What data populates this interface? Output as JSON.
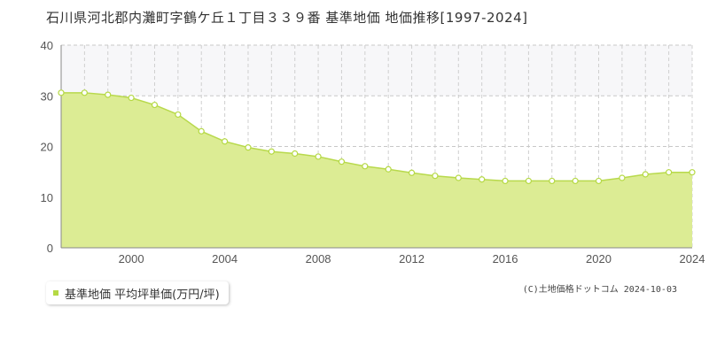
{
  "title": "石川県河北郡内灘町字鶴ケ丘１丁目３３９番 基準地価 地価推移[1997-2024]",
  "legend": {
    "label": "基準地価 平均坪単価(万円/坪)"
  },
  "credit": "(C)土地価格ドットコム 2024-10-03",
  "colors": {
    "fill": "#dcec94",
    "line": "#b8d94c",
    "band": "#f7f7f9",
    "marker": "#b5d944"
  },
  "chart_data": {
    "type": "area",
    "title": "石川県河北郡内灘町字鶴ケ丘１丁目３３９番 基準地価 地価推移[1997-2024]",
    "xlabel": "",
    "ylabel": "",
    "xlim": [
      1997,
      2024
    ],
    "ylim": [
      0,
      40
    ],
    "x_ticks": [
      2000,
      2004,
      2008,
      2012,
      2016,
      2020,
      2024
    ],
    "y_ticks": [
      0,
      10,
      20,
      30,
      40
    ],
    "grid": true,
    "highlight_band": [
      30,
      40
    ],
    "legend_position": "bottom-left",
    "series": [
      {
        "name": "基準地価 平均坪単価(万円/坪)",
        "x": [
          1997,
          1998,
          1999,
          2000,
          2001,
          2002,
          2003,
          2004,
          2005,
          2006,
          2007,
          2008,
          2009,
          2010,
          2011,
          2012,
          2013,
          2014,
          2015,
          2016,
          2017,
          2018,
          2019,
          2020,
          2021,
          2022,
          2023,
          2024
        ],
        "values": [
          30.6,
          30.6,
          30.2,
          29.6,
          28.2,
          26.3,
          23.0,
          21.0,
          19.8,
          19.0,
          18.6,
          18.0,
          17.0,
          16.1,
          15.5,
          14.8,
          14.2,
          13.8,
          13.5,
          13.2,
          13.2,
          13.2,
          13.2,
          13.2,
          13.8,
          14.5,
          14.9,
          14.9
        ]
      }
    ]
  }
}
